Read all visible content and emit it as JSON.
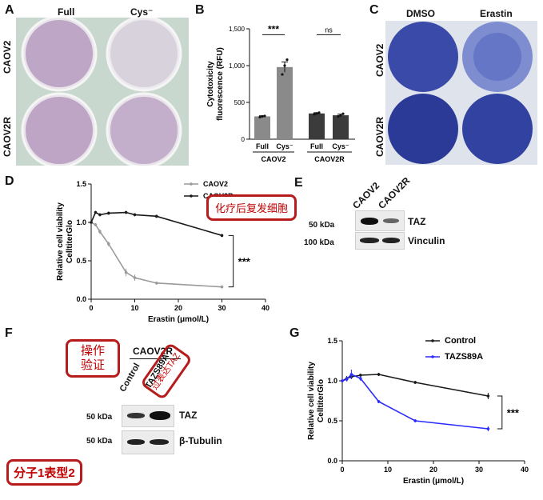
{
  "panel_letters": {
    "A": "A",
    "B": "B",
    "C": "C",
    "D": "D",
    "E": "E",
    "F": "F",
    "G": "G"
  },
  "panel_A": {
    "col_labels": [
      "Full",
      "Cys⁻"
    ],
    "row_labels": [
      "CAOV2",
      "CAOV2R"
    ],
    "colors": {
      "bg": "#c9d8cf",
      "stain_strong": "#a889b0",
      "stain_weak": "#d4cdd8"
    }
  },
  "panel_C": {
    "col_labels": [
      "DMSO",
      "Erastin"
    ],
    "row_labels": [
      "CAOV2",
      "CAOV2R"
    ],
    "colors": {
      "bg": "#dfe3ec",
      "stain": "#2f3f9e",
      "stain_light": "#6a7bc8"
    }
  },
  "panel_E": {
    "lane_labels": [
      "CAOV2",
      "CAOV2R"
    ],
    "rows": [
      {
        "marker": "50 kDa",
        "protein": "TAZ"
      },
      {
        "marker": "100 kDa",
        "protein": "Vinculin"
      }
    ]
  },
  "panel_F": {
    "group_label": "CAOV2R",
    "lane_labels": [
      "Control",
      "TAZS89A"
    ],
    "rows": [
      {
        "marker": "50 kDa",
        "protein": "TAZ"
      },
      {
        "marker": "50 kDa",
        "protein": "β-Tubulin"
      }
    ]
  },
  "annotations": {
    "callout_D": "化疗后复发细胞",
    "callout_F": "操作\n验证",
    "callout_F_line1": "操作",
    "callout_F_line2": "验证",
    "stamp_F": "过表达TAZ",
    "footer_tag": "分子1表型2"
  },
  "chart_data": [
    {
      "panel": "B",
      "type": "bar",
      "ylabel": "Cytotoxicity fluorescence (RFU)",
      "ylim": [
        0,
        1500
      ],
      "yticks": [
        0,
        500,
        1000,
        1500
      ],
      "categories": [
        "Full",
        "Cys⁻",
        "Full",
        "Cys⁻"
      ],
      "groups": [
        "CAOV2",
        "CAOV2R"
      ],
      "values": [
        310,
        980,
        350,
        325
      ],
      "errors": [
        8,
        70,
        10,
        15
      ],
      "points": [
        [
          300,
          310,
          315
        ],
        [
          880,
          1000,
          1080
        ],
        [
          340,
          350,
          360
        ],
        [
          310,
          325,
          345
        ]
      ],
      "significance": [
        "***",
        "ns"
      ],
      "colors": [
        "#8a8a8a",
        "#8a8a8a",
        "#3b3b3b",
        "#3b3b3b"
      ]
    },
    {
      "panel": "D",
      "type": "line",
      "xlabel": "Erastin (μmol/L)",
      "ylabel": "Relative cell viability CelltiterGlo",
      "xlim": [
        0,
        40
      ],
      "ylim": [
        0,
        1.5
      ],
      "xticks": [
        0,
        10,
        20,
        30,
        40
      ],
      "yticks": [
        0,
        0.5,
        1.0,
        1.5
      ],
      "series": [
        {
          "name": "CAOV2",
          "color": "#9a9a9a",
          "x": [
            0,
            1,
            2,
            4,
            8,
            10,
            15,
            30
          ],
          "y": [
            1.0,
            0.97,
            0.88,
            0.72,
            0.35,
            0.28,
            0.21,
            0.16
          ],
          "err": [
            0.02,
            0.02,
            0.03,
            0.03,
            0.05,
            0.04,
            0.02,
            0.02
          ]
        },
        {
          "name": "CAOV2R",
          "color": "#1a1a1a",
          "x": [
            0,
            1,
            2,
            4,
            8,
            10,
            15,
            30
          ],
          "y": [
            1.0,
            1.13,
            1.1,
            1.12,
            1.13,
            1.1,
            1.08,
            0.83
          ],
          "err": [
            0.01,
            0.02,
            0.02,
            0.02,
            0.02,
            0.02,
            0.02,
            0.02
          ]
        }
      ],
      "significance": "***"
    },
    {
      "panel": "G",
      "type": "line",
      "xlabel": "Erastin (μmol/L)",
      "ylabel": "Relative cell viability CelltiterGlo",
      "xlim": [
        0,
        40
      ],
      "ylim": [
        0,
        1.5
      ],
      "xticks": [
        0,
        10,
        20,
        30,
        40
      ],
      "yticks": [
        0,
        0.5,
        1.0,
        1.5
      ],
      "series": [
        {
          "name": "Control",
          "color": "#1a1a1a",
          "x": [
            0,
            1,
            2,
            4,
            8,
            16,
            32
          ],
          "y": [
            1.0,
            1.03,
            1.05,
            1.07,
            1.08,
            0.98,
            0.81
          ],
          "err": [
            0.02,
            0.03,
            0.03,
            0.02,
            0.02,
            0.02,
            0.04
          ]
        },
        {
          "name": "TAZS89A",
          "color": "#2b2bff",
          "x": [
            0,
            1,
            2,
            4,
            8,
            16,
            32
          ],
          "y": [
            1.0,
            1.02,
            1.08,
            1.03,
            0.74,
            0.5,
            0.4
          ],
          "err": [
            0.02,
            0.03,
            0.06,
            0.03,
            0.02,
            0.02,
            0.03
          ]
        }
      ],
      "significance": "***"
    }
  ]
}
